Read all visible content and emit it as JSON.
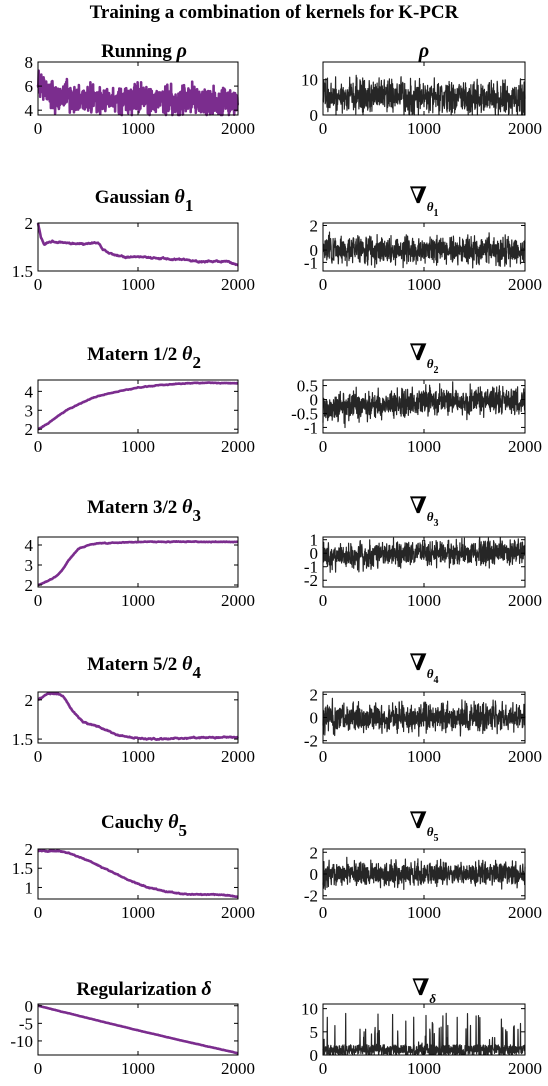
{
  "figure_title": "Training a combination of kernels for K-PCR",
  "colors": {
    "left_series": "#7b2d8e",
    "right_series": "#262626",
    "axes": "#000000"
  },
  "chart_data": [
    {
      "type": "line",
      "panel": "Running rho",
      "title_main": "Running ",
      "title_symbol": "ρ",
      "title_sub": "",
      "xlim": [
        0,
        2000
      ],
      "ylim": [
        3.6,
        8
      ],
      "xticks": [
        "0",
        "1000",
        "2000"
      ],
      "yticks": [
        4,
        6,
        8
      ],
      "x": [
        0,
        50,
        100,
        200,
        300,
        400,
        500,
        600,
        700,
        800,
        900,
        1000,
        1100,
        1200,
        1300,
        1400,
        1500,
        1600,
        1700,
        1800,
        1900,
        2000
      ],
      "y": [
        6.3,
        6.1,
        5.5,
        5.1,
        5.2,
        4.8,
        5.0,
        4.8,
        4.9,
        4.7,
        4.9,
        5.1,
        4.8,
        4.7,
        5.0,
        4.6,
        5.0,
        4.7,
        4.8,
        4.7,
        4.6,
        4.8
      ],
      "noise": 0.55
    },
    {
      "type": "line",
      "panel": "rho",
      "title_main": "",
      "title_symbol": "ρ",
      "title_sub": "",
      "xlim": [
        0,
        2000
      ],
      "ylim": [
        0,
        15
      ],
      "xticks": [
        "0",
        "1000",
        "2000"
      ],
      "yticks": [
        0,
        10
      ],
      "x": [
        0,
        500,
        1000,
        1500,
        2000
      ],
      "y": [
        5.5,
        5.0,
        5.0,
        4.8,
        4.7
      ],
      "noise": 2.4
    },
    {
      "type": "line",
      "panel": "Gaussian theta 1",
      "title_main": "Gaussian ",
      "title_symbol": "θ",
      "title_sub": "1",
      "xlim": [
        0,
        2000
      ],
      "ylim": [
        1.5,
        2.0
      ],
      "xticks": [
        "0",
        "1000",
        "2000"
      ],
      "yticks": [
        1.5,
        2
      ],
      "x": [
        0,
        30,
        60,
        150,
        300,
        450,
        500,
        600,
        650,
        750,
        900,
        1000,
        1200,
        1400,
        1600,
        1800,
        1900,
        2000
      ],
      "y": [
        2.0,
        1.85,
        1.78,
        1.81,
        1.79,
        1.78,
        1.79,
        1.79,
        1.72,
        1.67,
        1.64,
        1.65,
        1.63,
        1.62,
        1.6,
        1.6,
        1.6,
        1.56
      ],
      "noise": 0.01
    },
    {
      "type": "line",
      "panel": "gradient theta 1",
      "title_main": "",
      "title_symbol": "∇",
      "title_sub": "θ1",
      "xlim": [
        0,
        2000
      ],
      "ylim": [
        -1.7,
        2.2
      ],
      "xticks": [
        "0",
        "1000",
        "2000"
      ],
      "yticks": [
        -1,
        0,
        2
      ],
      "x": [
        0,
        1000,
        2000
      ],
      "y": [
        0,
        0,
        0
      ],
      "noise": 0.55
    },
    {
      "type": "line",
      "panel": "Matern 1/2 theta 2",
      "title_main": "Matern 1/2 ",
      "title_symbol": "θ",
      "title_sub": "2",
      "xlim": [
        0,
        2000
      ],
      "ylim": [
        1.8,
        4.6
      ],
      "xticks": [
        "0",
        "1000",
        "2000"
      ],
      "yticks": [
        2,
        3,
        4
      ],
      "x": [
        0,
        100,
        200,
        300,
        400,
        500,
        600,
        800,
        1000,
        1200,
        1400,
        1600,
        1800,
        2000
      ],
      "y": [
        2.0,
        2.3,
        2.7,
        3.05,
        3.3,
        3.55,
        3.75,
        4.0,
        4.2,
        4.32,
        4.4,
        4.45,
        4.45,
        4.43
      ],
      "noise": 0.02
    },
    {
      "type": "line",
      "panel": "gradient theta 2",
      "title_main": "",
      "title_symbol": "∇",
      "title_sub": "θ2",
      "xlim": [
        0,
        2000
      ],
      "ylim": [
        -1.2,
        0.7
      ],
      "xticks": [
        "0",
        "1000",
        "2000"
      ],
      "yticks": [
        -1,
        -0.5,
        0,
        0.5
      ],
      "x": [
        0,
        500,
        1000,
        2000
      ],
      "y": [
        -0.35,
        -0.2,
        -0.05,
        -0.05
      ],
      "noise": 0.25
    },
    {
      "type": "line",
      "panel": "Matern 3/2 theta 3",
      "title_main": "Matern 3/2 ",
      "title_symbol": "θ",
      "title_sub": "3",
      "xlim": [
        0,
        2000
      ],
      "ylim": [
        1.9,
        4.4
      ],
      "xticks": [
        "0",
        "1000",
        "2000"
      ],
      "yticks": [
        2,
        3,
        4
      ],
      "x": [
        0,
        100,
        200,
        250,
        300,
        400,
        500,
        600,
        800,
        1000,
        1500,
        2000
      ],
      "y": [
        2.0,
        2.2,
        2.5,
        2.8,
        3.2,
        3.8,
        4.0,
        4.08,
        4.12,
        4.15,
        4.17,
        4.15
      ],
      "noise": 0.02
    },
    {
      "type": "line",
      "panel": "gradient theta 3",
      "title_main": "",
      "title_symbol": "∇",
      "title_sub": "θ3",
      "xlim": [
        0,
        2000
      ],
      "ylim": [
        -2.5,
        1.2
      ],
      "xticks": [
        "0",
        "1000",
        "2000"
      ],
      "yticks": [
        -2,
        -1,
        0,
        1
      ],
      "x": [
        0,
        300,
        500,
        1000,
        2000
      ],
      "y": [
        -0.2,
        -0.4,
        -0.1,
        0,
        0
      ],
      "noise": 0.45
    },
    {
      "type": "line",
      "panel": "Matern 5/2 theta 4",
      "title_main": "Matern 5/2 ",
      "title_symbol": "θ",
      "title_sub": "4",
      "xlim": [
        0,
        2000
      ],
      "ylim": [
        1.45,
        2.1
      ],
      "xticks": [
        "0",
        "1000",
        "2000"
      ],
      "yticks": [
        1.5,
        2
      ],
      "x": [
        0,
        100,
        200,
        250,
        350,
        450,
        600,
        800,
        1000,
        1200,
        1400,
        1600,
        1800,
        2000
      ],
      "y": [
        2.0,
        2.08,
        2.08,
        2.05,
        1.85,
        1.72,
        1.66,
        1.55,
        1.51,
        1.5,
        1.51,
        1.52,
        1.52,
        1.53
      ],
      "noise": 0.01
    },
    {
      "type": "line",
      "panel": "gradient theta 4",
      "title_main": "",
      "title_symbol": "∇",
      "title_sub": "θ4",
      "xlim": [
        0,
        2000
      ],
      "ylim": [
        -2.2,
        2.2
      ],
      "xticks": [
        "0",
        "1000",
        "2000"
      ],
      "yticks": [
        -2,
        0,
        2
      ],
      "x": [
        0,
        1000,
        2000
      ],
      "y": [
        0,
        0,
        0
      ],
      "noise": 0.6
    },
    {
      "type": "line",
      "panel": "Cauchy theta 5",
      "title_main": "Cauchy ",
      "title_symbol": "θ",
      "title_sub": "5",
      "xlim": [
        0,
        2000
      ],
      "ylim": [
        0.7,
        2.0
      ],
      "xticks": [
        "0",
        "1000",
        "2000"
      ],
      "yticks": [
        1,
        1.5,
        2
      ],
      "x": [
        0,
        200,
        300,
        500,
        700,
        900,
        1100,
        1300,
        1500,
        1700,
        1900,
        2000
      ],
      "y": [
        1.95,
        1.95,
        1.9,
        1.7,
        1.45,
        1.2,
        1.0,
        0.88,
        0.82,
        0.82,
        0.8,
        0.75
      ],
      "noise": 0.015
    },
    {
      "type": "line",
      "panel": "gradient theta 5",
      "title_main": "",
      "title_symbol": "∇",
      "title_sub": "θ5",
      "xlim": [
        0,
        2000
      ],
      "ylim": [
        -2.3,
        2.3
      ],
      "xticks": [
        "0",
        "1000",
        "2000"
      ],
      "yticks": [
        -2,
        0,
        2
      ],
      "x": [
        0,
        1000,
        2000
      ],
      "y": [
        0,
        0,
        0
      ],
      "noise": 0.55
    },
    {
      "type": "line",
      "panel": "Regularization delta",
      "title_main": "Regularization ",
      "title_symbol": "δ",
      "title_sub": "",
      "xlim": [
        0,
        2000
      ],
      "ylim": [
        -14,
        0.5
      ],
      "xticks": [
        "0",
        "1000",
        "2000"
      ],
      "yticks": [
        -10,
        -5,
        0
      ],
      "x": [
        0,
        500,
        1000,
        1500,
        2000
      ],
      "y": [
        0,
        -3.5,
        -7.0,
        -10.3,
        -13.5
      ],
      "noise": 0.05
    },
    {
      "type": "line",
      "panel": "gradient delta",
      "title_main": "",
      "title_symbol": "∇",
      "title_sub": "δ",
      "xlim": [
        0,
        2000
      ],
      "ylim": [
        0,
        11
      ],
      "xticks": [
        "0",
        "1000",
        "2000"
      ],
      "yticks": [
        0,
        5,
        10
      ],
      "x": [
        0,
        1000,
        2000
      ],
      "y": [
        1.2,
        1.2,
        1.2
      ],
      "noise": 2.0,
      "positive": true
    }
  ]
}
